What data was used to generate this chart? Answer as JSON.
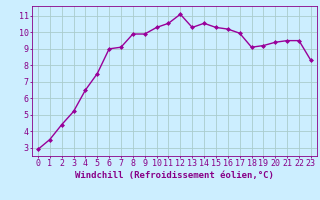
{
  "x": [
    0,
    1,
    2,
    3,
    4,
    5,
    6,
    7,
    8,
    9,
    10,
    11,
    12,
    13,
    14,
    15,
    16,
    17,
    18,
    19,
    20,
    21,
    22,
    23
  ],
  "y": [
    2.9,
    3.5,
    4.4,
    5.2,
    6.5,
    7.5,
    9.0,
    9.1,
    9.9,
    9.9,
    10.3,
    10.55,
    11.1,
    10.3,
    10.55,
    10.3,
    10.2,
    9.95,
    9.1,
    9.2,
    9.4,
    9.5,
    9.5,
    8.3
  ],
  "line_color": "#990099",
  "marker": "D",
  "marker_size": 2.0,
  "bg_color": "#cceeff",
  "grid_color": "#aacccc",
  "xlabel": "Windchill (Refroidissement éolien,°C)",
  "xlabel_fontsize": 6.5,
  "xtick_labels": [
    "0",
    "1",
    "2",
    "3",
    "4",
    "5",
    "6",
    "7",
    "8",
    "9",
    "10",
    "11",
    "12",
    "13",
    "14",
    "15",
    "16",
    "17",
    "18",
    "19",
    "20",
    "21",
    "22",
    "23"
  ],
  "ytick_values": [
    3,
    4,
    5,
    6,
    7,
    8,
    9,
    10,
    11
  ],
  "ylim": [
    2.5,
    11.6
  ],
  "xlim": [
    -0.5,
    23.5
  ],
  "tick_fontsize": 6.0,
  "axis_label_color": "#880088",
  "tick_color": "#880088",
  "spine_color": "#880088",
  "linewidth": 1.0
}
